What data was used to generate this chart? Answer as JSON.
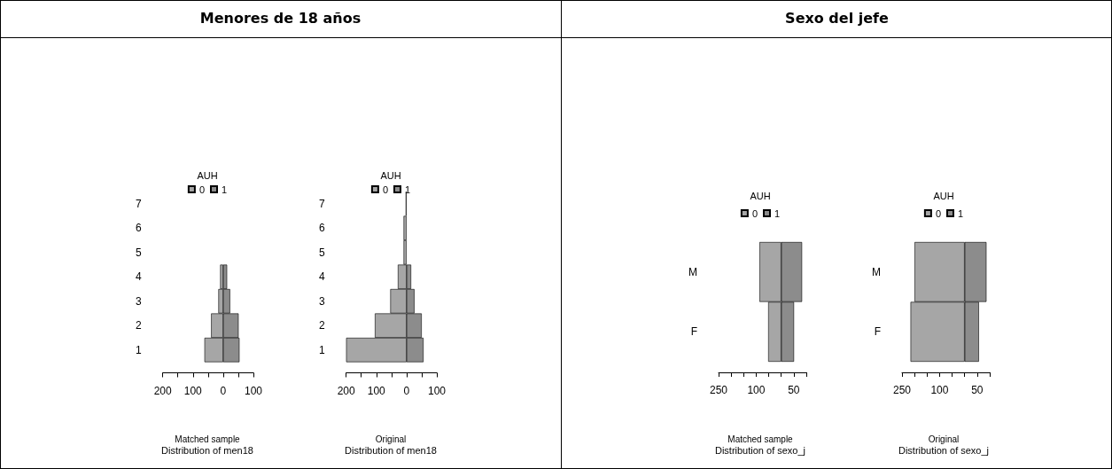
{
  "chart_data": [
    {
      "type": "bar",
      "title": "Menores de 18 años",
      "orientation": "horizontal",
      "stacked": true,
      "legend_title": "AUH",
      "legend": "top",
      "grid": false,
      "categories": [
        "7",
        "6",
        "5",
        "4",
        "3",
        "2",
        "1"
      ],
      "series": [
        {
          "name": "0",
          "color": "#a6a6a6",
          "values": [
            0,
            0,
            0,
            -10,
            -16,
            -40,
            -62
          ]
        },
        {
          "name": "1",
          "color": "#8c8c8c",
          "values": [
            0,
            0,
            0,
            13,
            23,
            51,
            54
          ]
        }
      ],
      "xlim": [
        -200,
        100
      ],
      "xticks": [
        {
          "value": -200,
          "label": "200"
        },
        {
          "value": -150,
          "label": null
        },
        {
          "value": -100,
          "label": "100"
        },
        {
          "value": -50,
          "label": null
        },
        0,
        {
          "value": 50,
          "label": null
        },
        100
      ],
      "annotations": [
        "Matched sample"
      ],
      "xlabel": "Distribution of men18"
    },
    {
      "type": "bar",
      "orientation": "horizontal",
      "stacked": true,
      "legend_title": "AUH",
      "legend": "top",
      "grid": false,
      "categories": [
        "7",
        "6",
        "5",
        "4",
        "3",
        "2",
        "1"
      ],
      "series": [
        {
          "name": "0",
          "color": "#a6a6a6",
          "values": [
            -3,
            -10,
            -10,
            -29,
            -54,
            -105,
            -200
          ]
        },
        {
          "name": "1",
          "color": "#8c8c8c",
          "values": [
            0,
            0,
            0,
            15,
            26,
            50,
            56
          ]
        }
      ],
      "xlim": [
        -200,
        100
      ],
      "xticks": [
        {
          "value": -200,
          "label": "200"
        },
        {
          "value": -150,
          "label": null
        },
        {
          "value": -100,
          "label": "100"
        },
        {
          "value": -50,
          "label": null
        },
        0,
        {
          "value": 50,
          "label": null
        },
        100
      ],
      "annotations": [
        "Original"
      ],
      "xlabel": "Distribution of men18"
    },
    {
      "type": "bar",
      "title": "Sexo del jefe",
      "orientation": "horizontal",
      "stacked": true,
      "legend_title": "AUH",
      "legend": "top",
      "grid": false,
      "categories": [
        "M",
        "F"
      ],
      "series": [
        {
          "name": "0",
          "color": "#a6a6a6",
          "values": [
            -87,
            -52
          ]
        },
        {
          "name": "1",
          "color": "#8c8c8c",
          "values": [
            83,
            51
          ]
        }
      ],
      "xlim": [
        -250,
        100
      ],
      "xticks": [
        {
          "value": -250,
          "label": "250"
        },
        {
          "value": -200,
          "label": null
        },
        {
          "value": -150,
          "label": null
        },
        {
          "value": -100,
          "label": "100"
        },
        {
          "value": -50,
          "label": null
        },
        {
          "value": 0,
          "label": null
        },
        50,
        {
          "value": 100,
          "label": null
        }
      ],
      "annotations": [
        "Matched sample"
      ],
      "xlabel": "Distribution of sexo_j"
    },
    {
      "type": "bar",
      "orientation": "horizontal",
      "stacked": true,
      "legend_title": "AUH",
      "legend": "top",
      "grid": false,
      "categories": [
        "M",
        "F"
      ],
      "series": [
        {
          "name": "0",
          "color": "#a6a6a6",
          "values": [
            -200,
            -216
          ]
        },
        {
          "name": "1",
          "color": "#8c8c8c",
          "values": [
            87,
            57
          ]
        }
      ],
      "xlim": [
        -250,
        100
      ],
      "xticks": [
        {
          "value": -250,
          "label": "250"
        },
        {
          "value": -200,
          "label": null
        },
        {
          "value": -150,
          "label": null
        },
        {
          "value": -100,
          "label": "100"
        },
        {
          "value": -50,
          "label": null
        },
        {
          "value": 0,
          "label": null
        },
        50,
        {
          "value": 100,
          "label": null
        }
      ],
      "annotations": [
        "Original"
      ],
      "xlabel": "Distribution of sexo_j"
    }
  ]
}
